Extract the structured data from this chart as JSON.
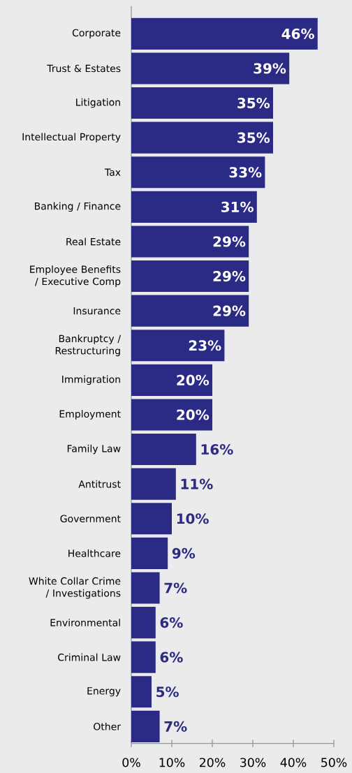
{
  "chart_data": {
    "type": "bar",
    "orientation": "horizontal",
    "categories": [
      "Corporate",
      "Trust & Estates",
      "Litigation",
      "Intellectual Property",
      "Tax",
      "Banking / Finance",
      "Real Estate",
      "Employee Benefits / Executive Comp",
      "Insurance",
      "Bankruptcy / Restructuring",
      "Immigration",
      "Employment",
      "Family Law",
      "Antitrust",
      "Government",
      "Healthcare",
      "White Collar Crime / Investigations",
      "Environmental",
      "Criminal Law",
      "Energy",
      "Other"
    ],
    "values": [
      46,
      39,
      35,
      35,
      33,
      31,
      29,
      29,
      29,
      23,
      20,
      20,
      16,
      11,
      10,
      9,
      7,
      6,
      6,
      5,
      7
    ],
    "value_labels": [
      "46%",
      "39%",
      "35%",
      "35%",
      "33%",
      "31%",
      "29%",
      "29%",
      "29%",
      "23%",
      "20%",
      "20%",
      "16%",
      "11%",
      "10%",
      "9%",
      "7%",
      "6%",
      "6%",
      "5%",
      "7%"
    ],
    "color": "#2b2a84",
    "xlim": [
      0,
      50
    ],
    "xticks": [
      {
        "value": 0,
        "label": "0%"
      },
      {
        "value": 10,
        "label": "10%"
      },
      {
        "value": 20,
        "label": "20%"
      },
      {
        "value": 30,
        "label": "30%"
      },
      {
        "value": 40,
        "label": "40%"
      },
      {
        "value": 50,
        "label": "50%"
      }
    ],
    "grid": false
  }
}
